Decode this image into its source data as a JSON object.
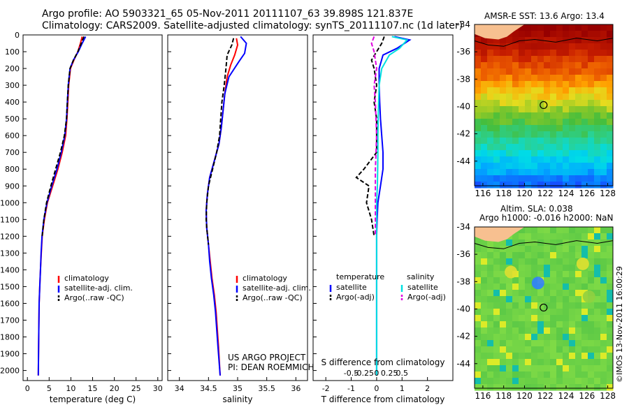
{
  "header": {
    "line1": "Argo profile: AO 5903321_65 05-Nov-2011 20111107_63 39.898S 121.837E",
    "line2": "Climatology: CARS2009. Satellite-adjusted climatology: synTS_20111107.nc (1d later)"
  },
  "colors": {
    "red": "#ff0000",
    "blue": "#0000ff",
    "cyan": "#00e0e0",
    "magenta": "#e000e0",
    "black": "#000000"
  },
  "chart_data": [
    {
      "type": "line",
      "panel": "temperature",
      "xlabel": "temperature (deg C)",
      "xlim": [
        -1,
        31
      ],
      "ylim": [
        2060,
        0
      ],
      "xticks": [
        0,
        5,
        10,
        15,
        20,
        25,
        30
      ],
      "yticks": [
        0,
        100,
        200,
        300,
        400,
        500,
        600,
        700,
        800,
        900,
        1000,
        1100,
        1200,
        1300,
        1400,
        1500,
        1600,
        1700,
        1800,
        1900,
        2000
      ],
      "legend": [
        "climatology",
        "satellite-adj. clim.",
        "Argo(..raw -QC)"
      ],
      "series": [
        {
          "name": "climatology",
          "color": "red",
          "dash": false,
          "x": [
            12.6,
            12.2,
            11.6,
            10.7,
            9.9,
            9.5,
            9.3,
            9.1,
            8.8,
            8.0,
            7.0,
            5.8,
            4.6,
            3.9,
            3.4,
            3.2,
            3.0,
            2.85,
            2.7,
            2.6,
            2.5
          ],
          "y": [
            10,
            50,
            100,
            150,
            200,
            300,
            400,
            500,
            600,
            700,
            800,
            900,
            1000,
            1100,
            1200,
            1300,
            1400,
            1500,
            1600,
            1800,
            2030
          ]
        },
        {
          "name": "satellite-adj. clim.",
          "color": "blue",
          "dash": false,
          "x": [
            13.4,
            12.6,
            11.7,
            10.6,
            9.8,
            9.4,
            9.2,
            9.0,
            8.6,
            7.8,
            6.8,
            5.6,
            4.5,
            3.8,
            3.35,
            3.15,
            3.0,
            2.85,
            2.7,
            2.6,
            2.5
          ],
          "y": [
            10,
            50,
            100,
            150,
            200,
            300,
            400,
            500,
            600,
            700,
            800,
            900,
            1000,
            1100,
            1200,
            1300,
            1400,
            1500,
            1600,
            1800,
            2030
          ]
        },
        {
          "name": "Argo(..raw -QC)",
          "color": "black",
          "dash": true,
          "x": [
            13.0,
            12.4,
            11.6,
            10.6,
            9.8,
            9.4,
            9.2,
            9.0,
            8.5,
            7.6,
            6.5,
            5.4,
            4.4,
            3.8,
            3.4
          ],
          "y": [
            10,
            50,
            100,
            150,
            200,
            300,
            400,
            500,
            600,
            700,
            800,
            900,
            1000,
            1100,
            1200
          ]
        }
      ]
    },
    {
      "type": "line",
      "panel": "salinity",
      "xlabel": "salinity",
      "xlim": [
        33.8,
        36.2
      ],
      "ylim": [
        2060,
        0
      ],
      "xticks": [
        34,
        34.5,
        35,
        35.5,
        36
      ],
      "legend": [
        "climatology",
        "satellite-adj. clim.",
        "Argo(..raw -QC)"
      ],
      "annotations": [
        "US ARGO PROJECT",
        "PI: DEAN ROEMMICH"
      ],
      "series": [
        {
          "name": "climatology",
          "color": "red",
          "dash": false,
          "x": [
            34.98,
            35.0,
            34.95,
            34.88,
            34.82,
            34.78,
            34.75,
            34.72,
            34.68,
            34.6,
            34.52,
            34.48,
            34.46,
            34.47,
            34.5,
            34.53,
            34.56,
            34.6,
            34.63,
            34.67,
            34.7
          ],
          "y": [
            20,
            60,
            120,
            180,
            250,
            350,
            450,
            550,
            650,
            750,
            850,
            950,
            1050,
            1150,
            1250,
            1350,
            1450,
            1550,
            1650,
            1850,
            2030
          ]
        },
        {
          "name": "satellite-adj. clim.",
          "color": "blue",
          "dash": false,
          "x": [
            35.05,
            35.15,
            35.12,
            35.02,
            34.85,
            34.78,
            34.75,
            34.72,
            34.68,
            34.6,
            34.52,
            34.48,
            34.46,
            34.47,
            34.5,
            34.52,
            34.55,
            34.59,
            34.62,
            34.66,
            34.7
          ],
          "y": [
            10,
            50,
            110,
            160,
            250,
            350,
            450,
            550,
            650,
            750,
            850,
            950,
            1050,
            1150,
            1250,
            1350,
            1450,
            1550,
            1650,
            1850,
            2030
          ]
        },
        {
          "name": "Argo(..raw -QC)",
          "color": "black",
          "dash": true,
          "x": [
            34.93,
            34.9,
            34.82,
            34.8,
            34.77,
            34.73,
            34.71,
            34.69,
            34.64,
            34.57,
            34.5,
            34.47,
            34.46,
            34.47,
            34.5
          ],
          "y": [
            20,
            60,
            120,
            200,
            300,
            400,
            500,
            600,
            700,
            800,
            900,
            1000,
            1100,
            1150,
            1250
          ]
        }
      ]
    },
    {
      "type": "line",
      "panel": "difference",
      "xlabel": "T difference from climatology",
      "xlabel_top": "S difference from climatology",
      "xlim": [
        -2.5,
        3
      ],
      "ylim": [
        2060,
        0
      ],
      "xticks": [
        -2,
        -1,
        0,
        1,
        2
      ],
      "xticks_S": [
        "-0.5",
        "-0.25",
        "0",
        "0.25",
        "0.5"
      ],
      "legend_headers": [
        "temperature",
        "salinity"
      ],
      "legend": [
        "satellite",
        "Argo(-adj)",
        "satellite",
        "Argo(-adj)"
      ],
      "series": [
        {
          "name": "satellite",
          "group": "temperature",
          "color": "blue",
          "dash": false,
          "x": [
            0.7,
            1.3,
            0.8,
            0.25,
            0.1,
            0.1,
            0.12,
            0.15,
            0.2,
            0.25,
            0.25,
            0.15,
            0.05,
            0.02,
            0.0,
            0.0,
            0.0,
            0.0,
            0.0
          ],
          "y": [
            10,
            30,
            80,
            120,
            200,
            300,
            400,
            500,
            600,
            700,
            800,
            900,
            1000,
            1100,
            1200,
            1400,
            1600,
            1800,
            2030
          ]
        },
        {
          "name": "Argo(-adj)",
          "group": "temperature",
          "color": "black",
          "dash": true,
          "x": [
            0.3,
            0.2,
            0.0,
            -0.2,
            -0.1,
            0.0,
            -0.1,
            0.0,
            0.0,
            -0.5,
            -0.8,
            -0.3,
            -0.4,
            -0.2,
            -0.1
          ],
          "y": [
            10,
            50,
            100,
            150,
            200,
            300,
            400,
            500,
            700,
            800,
            850,
            900,
            1000,
            1100,
            1200
          ]
        },
        {
          "name": "satellite",
          "group": "salinity",
          "color": "cyan",
          "dash": false,
          "x": [
            0.6,
            1.2,
            0.9,
            0.5,
            0.2,
            0.1,
            0.08,
            0.06,
            0.05,
            0.05,
            0.04,
            0.03,
            0.0,
            0.0,
            0.0,
            0.0,
            0.0
          ],
          "y": [
            10,
            30,
            80,
            120,
            200,
            300,
            400,
            500,
            600,
            700,
            800,
            900,
            1000,
            1200,
            1400,
            1800,
            2030
          ]
        },
        {
          "name": "Argo(-adj)",
          "group": "salinity",
          "color": "magenta",
          "dash": true,
          "x": [
            -0.1,
            -0.2,
            -0.1,
            -0.05,
            0.0,
            -0.1,
            -0.05,
            0.0,
            -0.05,
            -0.05,
            -0.05
          ],
          "y": [
            10,
            50,
            100,
            150,
            200,
            300,
            400,
            600,
            800,
            1000,
            1200
          ]
        }
      ]
    },
    {
      "type": "heatmap",
      "panel": "map-sst",
      "title": "AMSR-E SST: 13.6  Argo: 13.4",
      "xlim": [
        115.2,
        128.5
      ],
      "ylim": [
        -45.8,
        -34
      ],
      "xticks": [
        116,
        118,
        120,
        122,
        124,
        126,
        128
      ],
      "yticks": [
        -34,
        -36,
        -38,
        -40,
        -42,
        -44
      ],
      "float_position": {
        "lon": 121.837,
        "lat": -39.898
      }
    },
    {
      "type": "heatmap",
      "panel": "map-sla",
      "title_line1": "Altim. SLA: 0.038",
      "title_line2": "Argo h1000: -0.016 h2000: NaN",
      "xlim": [
        115.2,
        128.5
      ],
      "ylim": [
        -45.8,
        -34
      ],
      "xticks": [
        116,
        118,
        120,
        122,
        124,
        126,
        128
      ],
      "yticks": [
        -34,
        -36,
        -38,
        -40,
        -42,
        -44
      ],
      "float_position": {
        "lon": 121.837,
        "lat": -39.898
      }
    }
  ],
  "credit": "©IMOS 13-Nov-2011 16:00:29"
}
